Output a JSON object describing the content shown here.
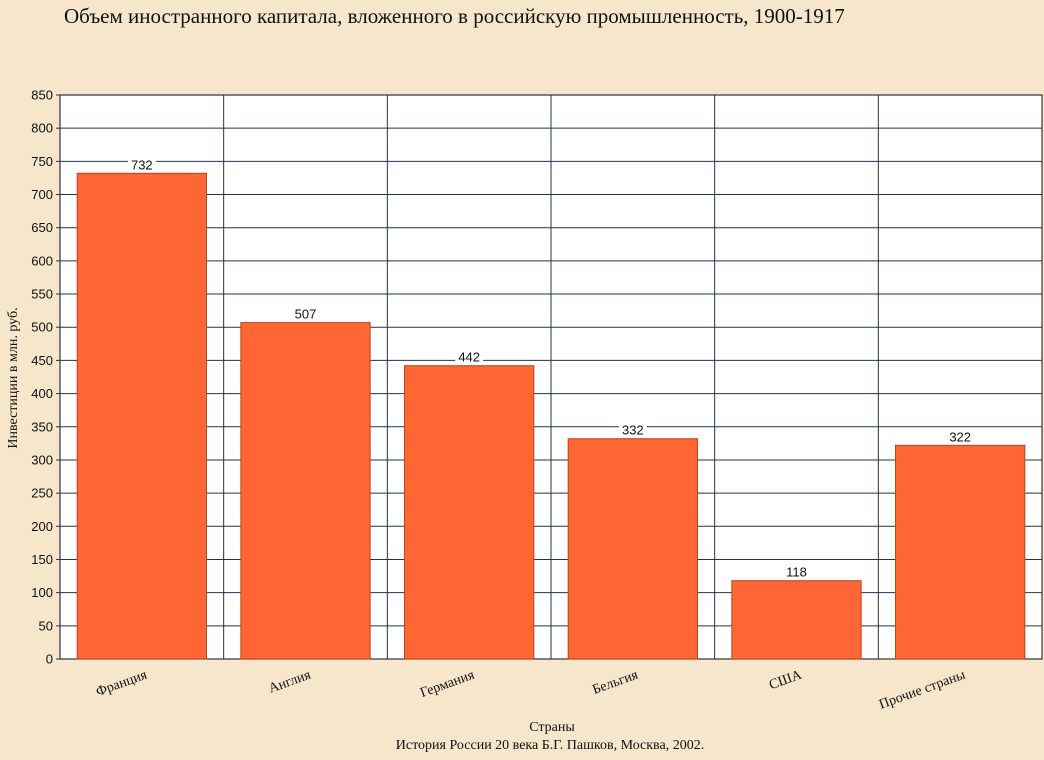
{
  "chart_data": {
    "type": "bar",
    "title": "Объем иностранного капитала, вложенного в российскую промышленность, 1900-1917",
    "xlabel": "Страны",
    "ylabel": "Инвестиции в млн. руб.",
    "categories": [
      "Франция",
      "Англия",
      "Германия",
      "Бельгия",
      "США",
      "Прочие страны"
    ],
    "values": [
      732,
      507,
      442,
      332,
      118,
      322
    ],
    "data_labels": [
      "732",
      "507",
      "442",
      "332",
      "118",
      "322"
    ],
    "ylim": [
      0,
      850
    ],
    "yticks": [
      0,
      50,
      100,
      150,
      200,
      250,
      300,
      350,
      400,
      450,
      500,
      550,
      600,
      650,
      700,
      750,
      800,
      850
    ],
    "grid": true,
    "legend": "none",
    "source": "История России 20 века Б.Г. Пашков, Москва, 2002."
  },
  "colors": {
    "bar_fill": "#ff6633",
    "bar_stroke": "#b8441d",
    "grid": "#1f3550",
    "plot_bg": "#ffffff",
    "page_bg": "#f5e6cc"
  }
}
